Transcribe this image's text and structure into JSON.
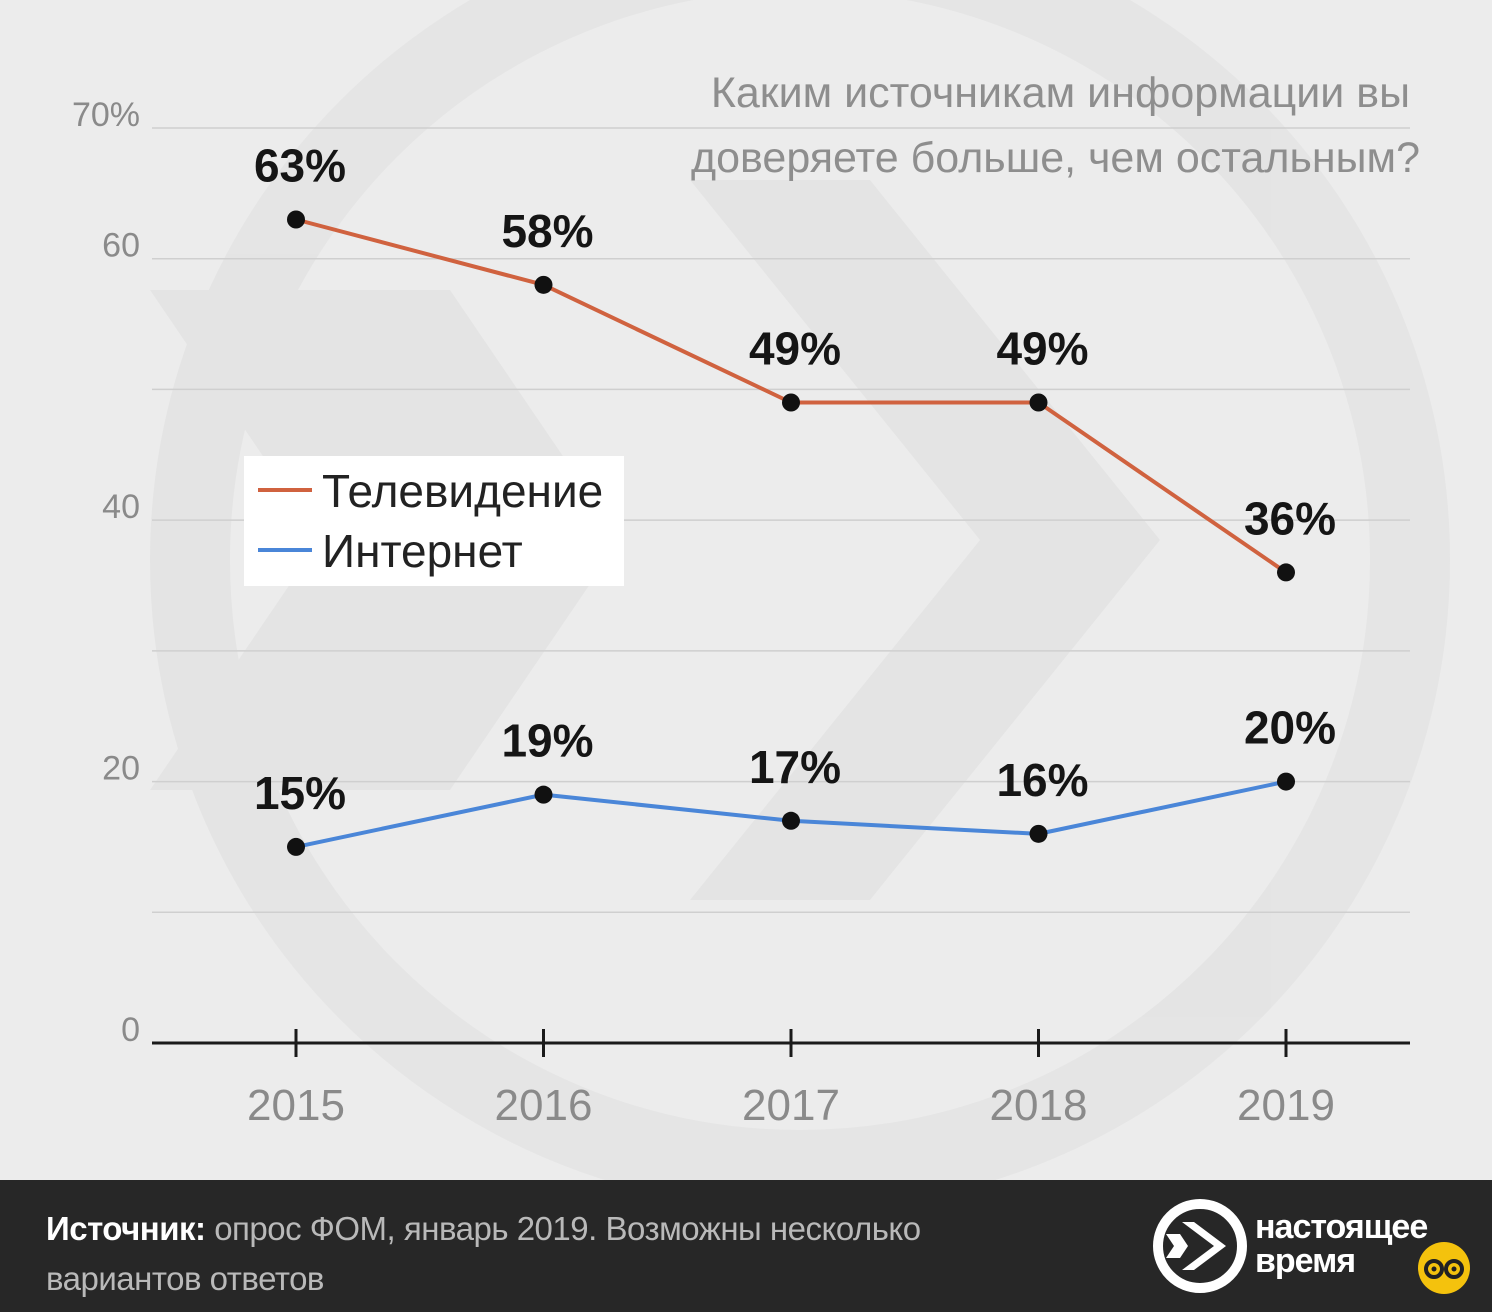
{
  "title": "Каким источникам информации вы доверяете больше, чем остальным?",
  "source_label": "Источник:",
  "source_text": " опрос ФОМ, январь 2019. Возможны несколько вариантов ответов",
  "brand": {
    "line1": "настоящее",
    "line2": "время"
  },
  "colors": {
    "tv": "#d0623f",
    "internet": "#4a86d8",
    "marker": "#111111",
    "background": "#ececec",
    "footer": "#272727"
  },
  "chart_data": {
    "type": "line",
    "title": "Каким источникам информации вы доверяете больше, чем остальным?",
    "categories": [
      "2015",
      "2016",
      "2017",
      "2018",
      "2019"
    ],
    "series": [
      {
        "name": "Телевидение",
        "values": [
          63,
          58,
          49,
          49,
          36
        ],
        "labels": [
          "63%",
          "58%",
          "49%",
          "49%",
          "36%"
        ],
        "color": "#d0623f"
      },
      {
        "name": "Интернет",
        "values": [
          15,
          19,
          17,
          16,
          20
        ],
        "labels": [
          "15%",
          "19%",
          "17%",
          "16%",
          "20%"
        ],
        "color": "#4a86d8"
      }
    ],
    "yticks": [
      0,
      10,
      20,
      30,
      40,
      50,
      60,
      70
    ],
    "ytick_labels": [
      "0",
      "",
      "20",
      "",
      "40",
      "",
      "60",
      "70%"
    ],
    "ylim": [
      0,
      70
    ],
    "grid": true,
    "legend_position": "middle-left"
  }
}
